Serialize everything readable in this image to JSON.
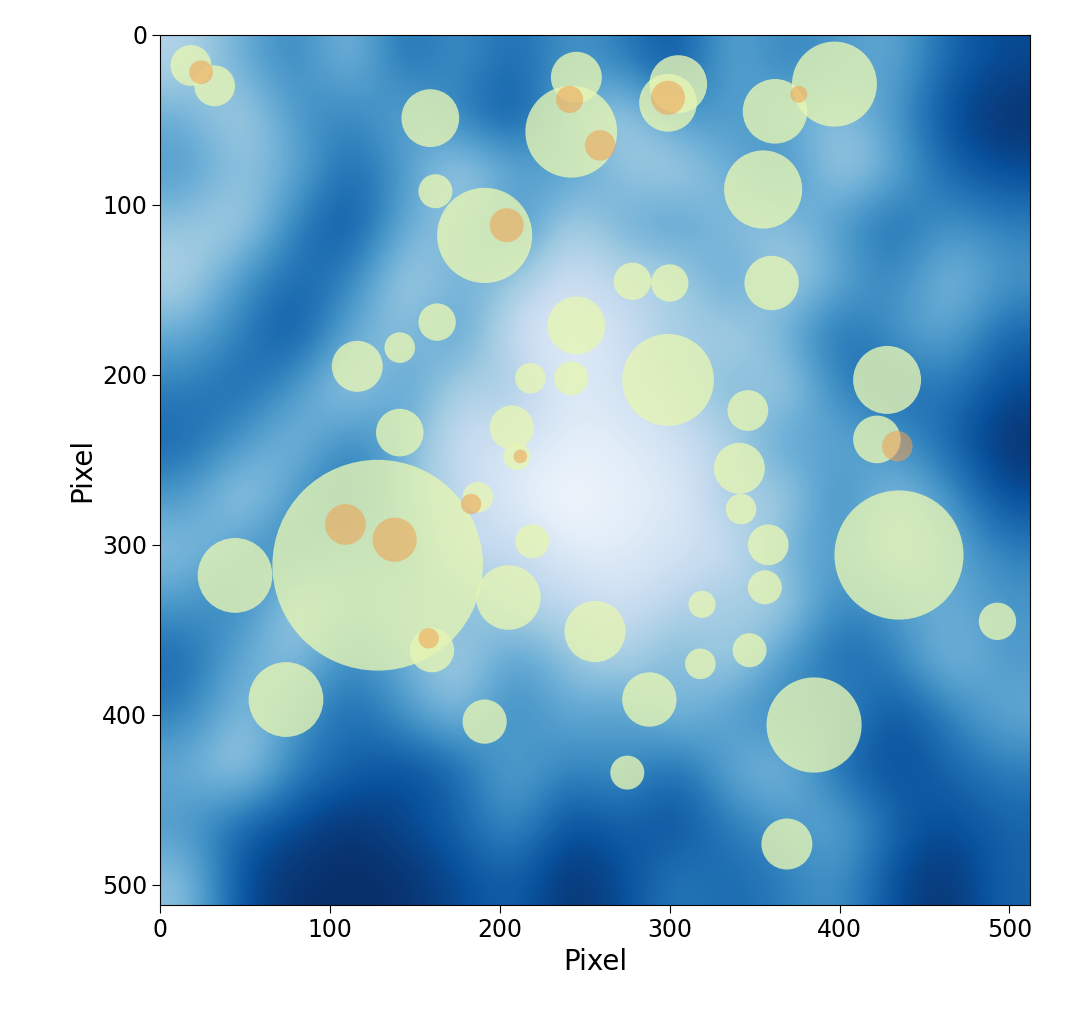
{
  "chart_data": {
    "type": "image",
    "xlabel": "Pixel",
    "ylabel": "Pixel",
    "xlim": [
      0,
      512
    ],
    "ylim": [
      512,
      0
    ],
    "xticks": [
      0,
      100,
      200,
      300,
      400,
      500
    ],
    "yticks": [
      0,
      100,
      200,
      300,
      400,
      500
    ],
    "color": "Blues",
    "color_range": [
      0,
      1
    ],
    "cells": [
      [
        0.3,
        0.5,
        0.7,
        0.4,
        0.8,
        0.6,
        0.8,
        0.6,
        0.7,
        0.9,
        0.5,
        0.7,
        0.6,
        0.5,
        0.8,
        0.9
      ],
      [
        0.5,
        0.3,
        0.6,
        0.7,
        0.5,
        0.7,
        0.9,
        0.5,
        0.3,
        0.6,
        0.6,
        0.5,
        0.4,
        0.6,
        0.9,
        1.0
      ],
      [
        0.6,
        0.4,
        0.5,
        0.8,
        0.6,
        0.3,
        0.5,
        0.6,
        0.4,
        0.3,
        0.5,
        0.7,
        0.3,
        0.5,
        0.8,
        0.9
      ],
      [
        0.4,
        0.3,
        0.7,
        0.9,
        0.5,
        0.4,
        0.7,
        0.3,
        0.5,
        0.6,
        0.4,
        0.4,
        0.6,
        0.8,
        0.6,
        0.7
      ],
      [
        0.3,
        0.6,
        0.8,
        0.7,
        0.3,
        0.5,
        0.4,
        0.2,
        0.3,
        0.3,
        0.6,
        0.3,
        0.5,
        0.7,
        0.4,
        0.6
      ],
      [
        0.5,
        0.7,
        0.9,
        0.5,
        0.4,
        0.6,
        0.2,
        0.1,
        0.2,
        0.4,
        0.3,
        0.5,
        0.8,
        0.6,
        0.5,
        0.8
      ],
      [
        0.7,
        0.8,
        0.6,
        0.3,
        0.6,
        0.3,
        0.4,
        0.1,
        0.2,
        0.3,
        0.5,
        0.3,
        0.7,
        0.8,
        0.7,
        0.9
      ],
      [
        0.8,
        0.6,
        0.4,
        0.7,
        0.5,
        0.2,
        0.2,
        0.1,
        0.1,
        0.2,
        0.3,
        0.6,
        0.5,
        0.6,
        0.8,
        1.0
      ],
      [
        0.6,
        0.3,
        0.6,
        0.8,
        0.4,
        0.3,
        0.1,
        0.0,
        0.1,
        0.1,
        0.4,
        0.3,
        0.7,
        0.4,
        0.6,
        0.9
      ],
      [
        0.4,
        0.6,
        0.7,
        0.5,
        0.6,
        0.2,
        0.3,
        0.1,
        0.1,
        0.2,
        0.2,
        0.5,
        0.6,
        0.3,
        0.5,
        0.7
      ],
      [
        0.6,
        0.7,
        0.3,
        0.5,
        0.4,
        0.5,
        0.3,
        0.3,
        0.2,
        0.3,
        0.4,
        0.3,
        0.7,
        0.6,
        0.5,
        0.6
      ],
      [
        0.8,
        0.5,
        0.4,
        0.7,
        0.5,
        0.3,
        0.6,
        0.4,
        0.3,
        0.5,
        0.3,
        0.6,
        0.8,
        0.7,
        0.4,
        0.6
      ],
      [
        0.7,
        0.4,
        0.6,
        0.8,
        0.6,
        0.4,
        0.7,
        0.5,
        0.6,
        0.4,
        0.6,
        0.7,
        0.6,
        0.9,
        0.7,
        0.5
      ],
      [
        0.5,
        0.3,
        0.7,
        0.8,
        0.9,
        0.8,
        0.5,
        0.7,
        0.6,
        0.8,
        0.5,
        0.4,
        0.8,
        0.9,
        0.8,
        0.7
      ],
      [
        0.6,
        0.8,
        0.9,
        1.0,
        0.9,
        0.8,
        0.6,
        0.9,
        0.8,
        0.9,
        0.7,
        0.6,
        0.5,
        0.8,
        0.9,
        0.8
      ],
      [
        0.4,
        0.9,
        1.0,
        1.0,
        1.0,
        0.9,
        0.8,
        1.0,
        0.9,
        0.7,
        0.8,
        0.7,
        0.6,
        0.9,
        1.0,
        0.8
      ]
    ],
    "regions": {
      "color": "#e6f5b4",
      "x": [
        18,
        32,
        245,
        305,
        397,
        159,
        242,
        299,
        362,
        162,
        191,
        355,
        278,
        300,
        360,
        245,
        163,
        141,
        299,
        116,
        218,
        242,
        428,
        141,
        207,
        210,
        346,
        422,
        341,
        342,
        187,
        128,
        435,
        219,
        358,
        44,
        205,
        356,
        256,
        160,
        319,
        347,
        318,
        493,
        74,
        288,
        385,
        191,
        275,
        369
      ],
      "y": [
        18,
        30,
        25,
        29,
        29,
        49,
        57,
        40,
        45,
        92,
        118,
        91,
        145,
        146,
        146,
        171,
        169,
        184,
        203,
        195,
        202,
        202,
        203,
        234,
        231,
        248,
        221,
        238,
        255,
        279,
        272,
        312,
        306,
        298,
        300,
        318,
        331,
        325,
        351,
        362,
        335,
        362,
        370,
        345,
        391,
        391,
        406,
        404,
        434,
        476
      ],
      "r": [
        12,
        12,
        15,
        17,
        25,
        17,
        27,
        17,
        19,
        10,
        28,
        23,
        11,
        11,
        16,
        17,
        11,
        9,
        27,
        15,
        9,
        10,
        20,
        14,
        13,
        8,
        12,
        14,
        15,
        9,
        9,
        62,
        38,
        10,
        12,
        22,
        19,
        10,
        18,
        13,
        8,
        10,
        9,
        11,
        22,
        16,
        28,
        13,
        10,
        15
      ]
    },
    "subregions": {
      "color": "#f0a050",
      "x": [
        24,
        241,
        259,
        299,
        376,
        204,
        109,
        138,
        212,
        434,
        183,
        158
      ],
      "y": [
        22,
        38,
        65,
        37,
        35,
        112,
        288,
        297,
        248,
        242,
        276,
        355
      ],
      "r": [
        7,
        8,
        9,
        10,
        5,
        10,
        12,
        13,
        4,
        9,
        6,
        6
      ]
    }
  }
}
